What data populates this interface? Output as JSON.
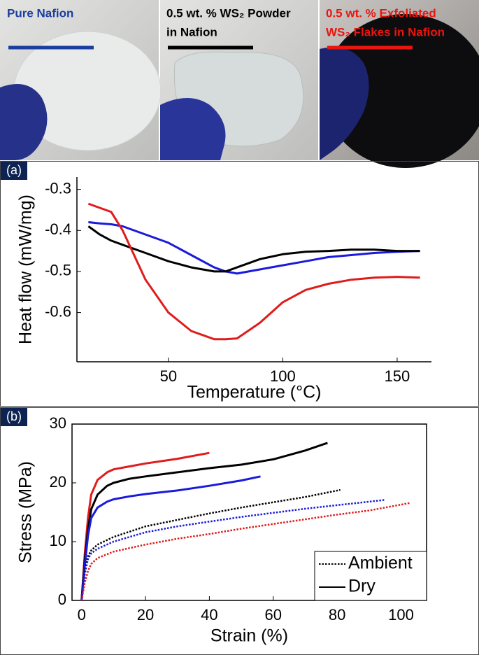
{
  "photos": [
    {
      "lines": [
        "Pure Nafion"
      ],
      "color": "#1b3d9e"
    },
    {
      "lines": [
        "0.5 wt. % WS₂ Powder",
        "in Nafion"
      ],
      "color": "#000000"
    },
    {
      "lines": [
        "0.5 wt. % Exfoliated",
        "WS₂ Flakes in Nafion"
      ],
      "color": "#e8160f"
    }
  ],
  "chart_data": [
    {
      "type": "line",
      "panel_label": "(a)",
      "xlabel": "Temperature (°C)",
      "ylabel": "Heat flow (mW/mg)",
      "x": [
        15,
        20,
        25,
        30,
        40,
        50,
        60,
        70,
        75,
        80,
        90,
        100,
        110,
        120,
        130,
        140,
        150,
        160
      ],
      "series": [
        {
          "color": "#1a1adc",
          "values": [
            -0.38,
            -0.383,
            -0.385,
            -0.39,
            -0.41,
            -0.43,
            -0.46,
            -0.49,
            -0.5,
            -0.505,
            -0.495,
            -0.485,
            -0.475,
            -0.465,
            -0.46,
            -0.455,
            -0.452,
            -0.45
          ]
        },
        {
          "color": "#000000",
          "values": [
            -0.39,
            -0.41,
            -0.425,
            -0.435,
            -0.455,
            -0.475,
            -0.49,
            -0.5,
            -0.5,
            -0.49,
            -0.47,
            -0.458,
            -0.452,
            -0.45,
            -0.447,
            -0.447,
            -0.45,
            -0.45
          ]
        },
        {
          "color": "#e01b1b",
          "values": [
            -0.335,
            -0.345,
            -0.355,
            -0.4,
            -0.52,
            -0.6,
            -0.645,
            -0.665,
            -0.665,
            -0.663,
            -0.625,
            -0.575,
            -0.545,
            -0.53,
            -0.52,
            -0.515,
            -0.513,
            -0.515
          ]
        }
      ],
      "xlim": [
        10,
        165
      ],
      "ylim": [
        -0.72,
        -0.27
      ],
      "xticks": [
        50,
        100,
        150
      ],
      "yticks": [
        -0.3,
        -0.4,
        -0.5,
        -0.6
      ],
      "box": false
    },
    {
      "type": "line",
      "panel_label": "(b)",
      "xlabel": "Strain (%)",
      "ylabel": "Stress (MPa)",
      "series": [
        {
          "color": "#e01b1b",
          "dash": "solid",
          "x": [
            0,
            1,
            2,
            3,
            5,
            8,
            10,
            15,
            20,
            30,
            40
          ],
          "values": [
            0,
            8,
            14,
            18,
            20.5,
            21.8,
            22.3,
            22.8,
            23.3,
            24.1,
            25.1
          ]
        },
        {
          "color": "#000000",
          "dash": "solid",
          "x": [
            0,
            1,
            2,
            3,
            5,
            8,
            10,
            15,
            20,
            30,
            40,
            50,
            60,
            70,
            77
          ],
          "values": [
            0,
            7,
            12,
            15.5,
            18,
            19.5,
            20,
            20.7,
            21.1,
            21.8,
            22.5,
            23.1,
            24,
            25.5,
            26.8
          ]
        },
        {
          "color": "#1a1adc",
          "dash": "solid",
          "x": [
            0,
            1,
            2,
            3,
            5,
            8,
            10,
            15,
            20,
            30,
            40,
            50,
            56
          ],
          "values": [
            0,
            6,
            11,
            14,
            15.8,
            16.8,
            17.2,
            17.7,
            18.1,
            18.7,
            19.5,
            20.4,
            21.1
          ]
        },
        {
          "color": "#000000",
          "dash": "dotted",
          "x": [
            0,
            1,
            2,
            3,
            5,
            10,
            20,
            30,
            40,
            50,
            60,
            70,
            81
          ],
          "values": [
            0,
            5,
            7.5,
            8.5,
            9.5,
            10.8,
            12.6,
            13.7,
            14.8,
            15.8,
            16.7,
            17.6,
            18.8
          ]
        },
        {
          "color": "#1a1adc",
          "dash": "dotted",
          "x": [
            0,
            1,
            2,
            3,
            5,
            10,
            20,
            30,
            40,
            50,
            60,
            70,
            80,
            95
          ],
          "values": [
            0,
            4.5,
            7,
            8,
            8.8,
            10,
            11.6,
            12.6,
            13.4,
            14.2,
            14.9,
            15.6,
            16.2,
            17.1
          ]
        },
        {
          "color": "#e01b1b",
          "dash": "dotted",
          "x": [
            0,
            1,
            2,
            3,
            5,
            10,
            20,
            30,
            40,
            50,
            60,
            70,
            80,
            90,
            103
          ],
          "values": [
            0,
            3,
            5,
            6.2,
            7.2,
            8.3,
            9.5,
            10.5,
            11.3,
            12.2,
            13,
            13.8,
            14.6,
            15.3,
            16.6
          ]
        }
      ],
      "legend": {
        "position": "lower right",
        "entries": [
          {
            "label": "Ambient",
            "dash": "dotted"
          },
          {
            "label": "Dry",
            "dash": "solid"
          }
        ]
      },
      "xlim": [
        -3,
        108
      ],
      "ylim": [
        0,
        30
      ],
      "xticks": [
        0,
        20,
        40,
        60,
        80,
        100
      ],
      "yticks": [
        0,
        10,
        20,
        30
      ],
      "box": true
    }
  ]
}
